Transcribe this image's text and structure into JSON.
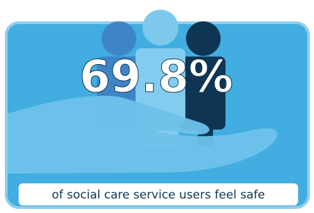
{
  "stat": "69.8%",
  "caption": "of social care service users feel safe"
}
